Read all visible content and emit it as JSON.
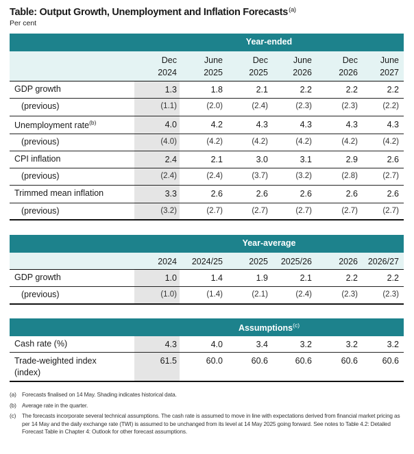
{
  "title": "Table: Output Growth, Unemployment and Inflation Forecasts",
  "title_note": "(a)",
  "subtitle": "Per cent",
  "colors": {
    "header_band": "#1d828c",
    "subheader": "#e4f3f3",
    "historical_shading": "#e5e5e5"
  },
  "year_ended": {
    "band_label": "Year-ended",
    "columns": [
      {
        "line1": "Dec",
        "line2": "2024"
      },
      {
        "line1": "June",
        "line2": "2025"
      },
      {
        "line1": "Dec",
        "line2": "2025"
      },
      {
        "line1": "June",
        "line2": "2026"
      },
      {
        "line1": "Dec",
        "line2": "2026"
      },
      {
        "line1": "June",
        "line2": "2027"
      }
    ],
    "rows": [
      {
        "label": "GDP growth",
        "note": "",
        "values": [
          "1.3",
          "1.8",
          "2.1",
          "2.2",
          "2.2",
          "2.2"
        ]
      },
      {
        "label": "(previous)",
        "note": "",
        "values": [
          "(1.1)",
          "(2.0)",
          "(2.4)",
          "(2.3)",
          "(2.3)",
          "(2.2)"
        ]
      },
      {
        "label": "Unemployment rate",
        "note": "(b)",
        "values": [
          "4.0",
          "4.2",
          "4.3",
          "4.3",
          "4.3",
          "4.3"
        ]
      },
      {
        "label": "(previous)",
        "note": "",
        "values": [
          "(4.0)",
          "(4.2)",
          "(4.2)",
          "(4.2)",
          "(4.2)",
          "(4.2)"
        ]
      },
      {
        "label": "CPI inflation",
        "note": "",
        "values": [
          "2.4",
          "2.1",
          "3.0",
          "3.1",
          "2.9",
          "2.6"
        ]
      },
      {
        "label": "(previous)",
        "note": "",
        "values": [
          "(2.4)",
          "(2.4)",
          "(3.7)",
          "(3.2)",
          "(2.8)",
          "(2.7)"
        ]
      },
      {
        "label": "Trimmed mean inflation",
        "note": "",
        "values": [
          "3.3",
          "2.6",
          "2.6",
          "2.6",
          "2.6",
          "2.6"
        ]
      },
      {
        "label": "(previous)",
        "note": "",
        "values": [
          "(3.2)",
          "(2.7)",
          "(2.7)",
          "(2.7)",
          "(2.7)",
          "(2.7)"
        ]
      }
    ]
  },
  "year_average": {
    "band_label": "Year-average",
    "columns": [
      "2024",
      "2024/25",
      "2025",
      "2025/26",
      "2026",
      "2026/27"
    ],
    "rows": [
      {
        "label": "GDP growth",
        "values": [
          "1.0",
          "1.4",
          "1.9",
          "2.1",
          "2.2",
          "2.2"
        ]
      },
      {
        "label": "(previous)",
        "values": [
          "(1.0)",
          "(1.4)",
          "(2.1)",
          "(2.4)",
          "(2.3)",
          "(2.3)"
        ]
      }
    ]
  },
  "assumptions": {
    "band_label": "Assumptions",
    "band_note": "(c)",
    "rows": [
      {
        "label": "Cash rate (%)",
        "label2": "",
        "values": [
          "4.3",
          "4.0",
          "3.4",
          "3.2",
          "3.2",
          "3.2"
        ]
      },
      {
        "label": "Trade-weighted index",
        "label2": "(index)",
        "values": [
          "61.5",
          "60.0",
          "60.6",
          "60.6",
          "60.6",
          "60.6"
        ]
      }
    ]
  },
  "notes": [
    {
      "key": "(a)",
      "text": "Forecasts finalised on 14 May. Shading indicates historical data."
    },
    {
      "key": "(b)",
      "text": "Average rate in the quarter."
    },
    {
      "key": "(c)",
      "text": "The forecasts incorporate several technical assumptions. The cash rate is assumed to move in line with expectations derived from financial market pricing as per 14 May and the daily exchange rate (TWI) is assumed to be unchanged from its level at 14 May 2025 going forward. See notes to Table 4.2: Detailed Forecast Table in Chapter 4: Outlook for other forecast assumptions."
    }
  ]
}
